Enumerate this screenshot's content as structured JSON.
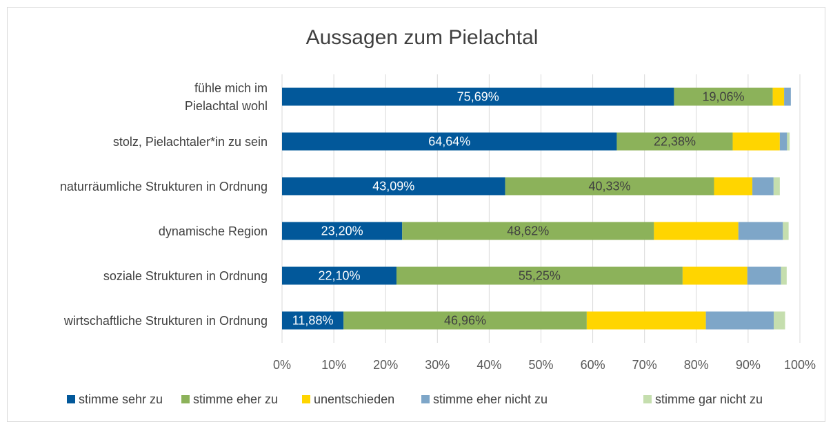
{
  "chart_data": {
    "type": "stacked_bar_horizontal",
    "title": "Aussagen zum Pielachtal",
    "categories": [
      "fühle mich im\nPielachtal wohl",
      "stolz, Pielachtaler*in zu sein",
      "naturräumliche Strukturen in Ordnung",
      "dynamische Region",
      "soziale Strukturen in Ordnung",
      "wirtschaftliche Strukturen in Ordnung"
    ],
    "series": [
      {
        "name": "stimme sehr zu",
        "color": "#02589a",
        "values": [
          75.69,
          64.64,
          43.09,
          23.2,
          22.1,
          11.88
        ],
        "value_labels": [
          "75,69%",
          "64,64%",
          "43,09%",
          "23,20%",
          "22,10%",
          "11,88%"
        ]
      },
      {
        "name": "stimme eher zu",
        "color": "#8cb25a",
        "values": [
          19.06,
          22.38,
          40.33,
          48.62,
          55.25,
          46.96
        ],
        "value_labels": [
          "19,06%",
          "22,38%",
          "40,33%",
          "48,62%",
          "55,25%",
          "46,96%"
        ]
      },
      {
        "name": "unentschieden",
        "color": "#ffd500",
        "values": [
          2.2,
          9.1,
          7.4,
          16.3,
          12.5,
          23.0
        ]
      },
      {
        "name": "stimme eher nicht zu",
        "color": "#7ea6c8",
        "values": [
          1.3,
          1.4,
          4.1,
          8.6,
          6.5,
          13.1
        ]
      },
      {
        "name": "stimme gar nicht zu",
        "color": "#c5deae",
        "values": [
          0,
          0.5,
          1.2,
          1.1,
          1.1,
          2.2
        ]
      }
    ],
    "xlim": [
      0,
      100
    ],
    "xticks": [
      {
        "value": 0,
        "label": "0%"
      },
      {
        "value": 10,
        "label": "10%"
      },
      {
        "value": 20,
        "label": "20%"
      },
      {
        "value": 30,
        "label": "30%"
      },
      {
        "value": 40,
        "label": "40%"
      },
      {
        "value": 50,
        "label": "50%"
      },
      {
        "value": 60,
        "label": "60%"
      },
      {
        "value": 70,
        "label": "70%"
      },
      {
        "value": 80,
        "label": "80%"
      },
      {
        "value": 90,
        "label": "90%"
      },
      {
        "value": 100,
        "label": "100%"
      }
    ],
    "grid": true,
    "legend": "bottom"
  }
}
